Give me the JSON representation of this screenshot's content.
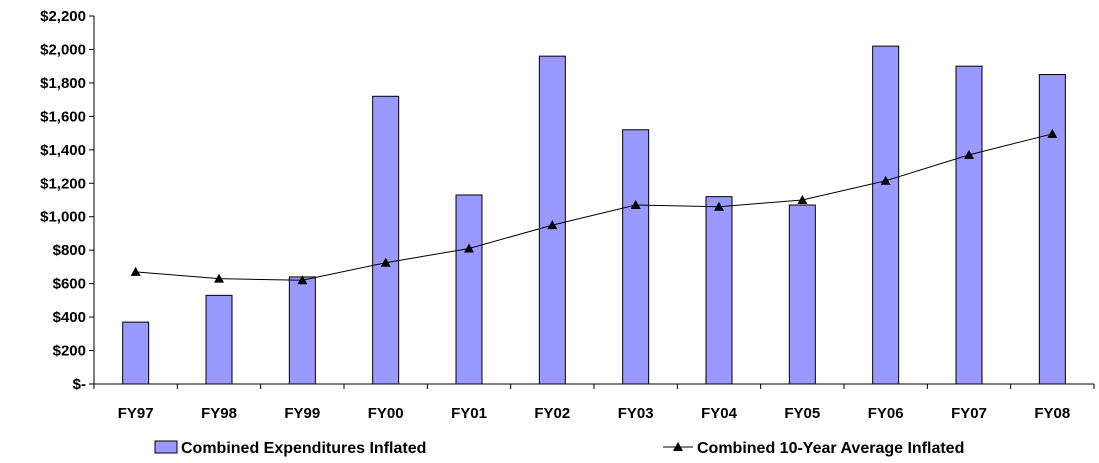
{
  "chart_data": {
    "type": "bar",
    "categories": [
      "FY97",
      "FY98",
      "FY99",
      "FY00",
      "FY01",
      "FY02",
      "FY03",
      "FY04",
      "FY05",
      "FY06",
      "FY07",
      "FY08"
    ],
    "series": [
      {
        "name": "Combined Expenditures Inflated",
        "type": "bar",
        "color": "#9999ff",
        "values": [
          370,
          530,
          640,
          1720,
          1130,
          1960,
          1520,
          1120,
          1070,
          2020,
          1900,
          1850
        ]
      },
      {
        "name": "Combined 10-Year Average Inflated",
        "type": "line",
        "marker": "triangle",
        "color": "#000000",
        "values": [
          670,
          630,
          620,
          725,
          810,
          950,
          1070,
          1060,
          1100,
          1215,
          1370,
          1495
        ]
      }
    ],
    "y_ticks": [
      "$-",
      "$200",
      "$400",
      "$600",
      "$800",
      "$1,000",
      "$1,200",
      "$1,400",
      "$1,600",
      "$1,800",
      "$2,000",
      "$2,200"
    ],
    "ylim": [
      0,
      2200
    ],
    "y_step": 200,
    "grid": false,
    "legend_position": "bottom"
  }
}
